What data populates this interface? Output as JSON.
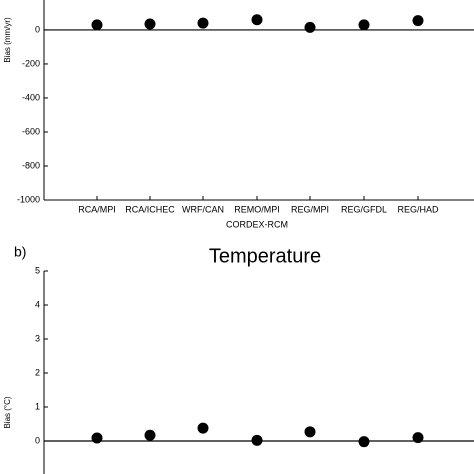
{
  "chart_data": [
    {
      "type": "scatter",
      "y_label": "Bias (mm/yr)",
      "x_label": "CORDEX-RCM",
      "categories": [
        "RCA/MPI",
        "RCA/ICHEC",
        "WRF/CAN",
        "REMO/MPI",
        "REG/MPI",
        "REG/GFDL",
        "REG/HAD"
      ],
      "values": [
        30,
        35,
        40,
        60,
        15,
        30,
        55
      ],
      "color": "#000000",
      "ylim": [
        -1000,
        176
      ],
      "yticks": [
        -1000,
        -800,
        -600,
        -400,
        -200,
        0
      ],
      "zero_line": true
    },
    {
      "type": "scatter",
      "panel_label": "b)",
      "title": "Temperature",
      "y_label": "Bias (°C)",
      "categories": [
        null,
        null,
        null,
        null,
        null,
        null,
        null
      ],
      "values": [
        0.09,
        0.17,
        0.38,
        0.02,
        0.27,
        -0.02,
        0.1
      ],
      "color": "#000000",
      "ylim": [
        -1,
        5
      ],
      "yticks": [
        0,
        1,
        2,
        3,
        4,
        5
      ],
      "zero_line": true
    }
  ]
}
